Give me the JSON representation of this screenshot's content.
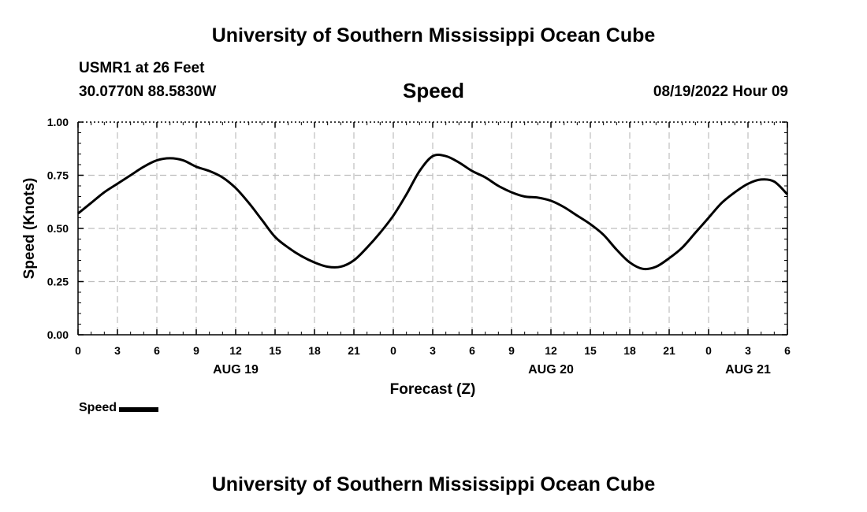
{
  "header": {
    "title": "University of Southern Mississippi Ocean Cube",
    "station": "USMR1 at 26 Feet",
    "coords": "30.0770N  88.5830W",
    "variable": "Speed",
    "valid_time": "08/19/2022 Hour 09"
  },
  "footer": {
    "title": "University of Southern Mississippi Ocean Cube"
  },
  "legend": {
    "label": "Speed",
    "color": "#000000"
  },
  "chart_data": {
    "type": "line",
    "title": "Speed",
    "xlabel": "Forecast (Z)",
    "ylabel": "Speed (Knots)",
    "xlim": [
      0,
      54
    ],
    "ylim": [
      0,
      1
    ],
    "grid": true,
    "x_tick_labels": [
      "0",
      "3",
      "6",
      "9",
      "12",
      "15",
      "18",
      "21",
      "0",
      "3",
      "6",
      "9",
      "12",
      "15",
      "18",
      "21",
      "0",
      "3",
      "6"
    ],
    "y_tick_labels": [
      "0.00",
      "0.25",
      "0.50",
      "0.75",
      "1.00"
    ],
    "date_labels": [
      {
        "x": 12,
        "label": "AUG 19"
      },
      {
        "x": 36,
        "label": "AUG 20"
      },
      {
        "x": 51,
        "label": "AUG 21"
      }
    ],
    "series": [
      {
        "name": "Speed",
        "color": "#000000",
        "x": [
          0,
          1,
          2,
          3,
          4,
          5,
          6,
          7,
          8,
          9,
          10,
          11,
          12,
          13,
          14,
          15,
          16,
          17,
          18,
          19,
          20,
          21,
          22,
          23,
          24,
          25,
          26,
          27,
          28,
          29,
          30,
          31,
          32,
          33,
          34,
          35,
          36,
          37,
          38,
          39,
          40,
          41,
          42,
          43,
          44,
          45,
          46,
          47,
          48,
          49,
          50,
          51,
          52,
          53,
          54
        ],
        "values": [
          0.57,
          0.62,
          0.67,
          0.71,
          0.75,
          0.79,
          0.82,
          0.83,
          0.82,
          0.79,
          0.77,
          0.74,
          0.69,
          0.62,
          0.54,
          0.46,
          0.41,
          0.37,
          0.34,
          0.32,
          0.32,
          0.35,
          0.41,
          0.48,
          0.56,
          0.66,
          0.77,
          0.84,
          0.84,
          0.81,
          0.77,
          0.74,
          0.7,
          0.67,
          0.65,
          0.645,
          0.63,
          0.6,
          0.56,
          0.52,
          0.47,
          0.4,
          0.34,
          0.31,
          0.32,
          0.36,
          0.41,
          0.48,
          0.55,
          0.62,
          0.67,
          0.71,
          0.73,
          0.72,
          0.66
        ]
      }
    ]
  }
}
